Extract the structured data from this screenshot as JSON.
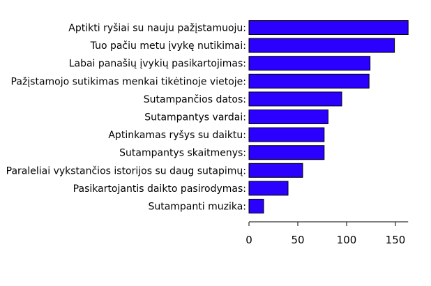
{
  "chart_data": {
    "type": "bar",
    "orientation": "horizontal",
    "categories": [
      "Aptikti ryšiai su nauju pažįstamuoju:",
      "Tuo pačiu metu įvykę nutikimai:",
      "Labai panašių įvykių pasikartojimas:",
      "Pažįstamojo sutikimas menkai tikėtinoje vietoje:",
      "Sutampančios datos:",
      "Sutampantys vardai:",
      "Aptinkamas ryšys su daiktu:",
      "Sutampantys skaitmenys:",
      "Paraleliai vykstančios istorijos su daug sutapimų:",
      "Pasikartojantis daikto pasirodymas:",
      "Sutampanti muzika:"
    ],
    "values": [
      163,
      149,
      124,
      123,
      95,
      81,
      77,
      77,
      55,
      40,
      15
    ],
    "xlim": [
      0,
      163
    ],
    "xticks": [
      0,
      50,
      100,
      150
    ],
    "bar_color": "#2b00ff",
    "bar_edge_color": "#000000",
    "grid": false
  }
}
